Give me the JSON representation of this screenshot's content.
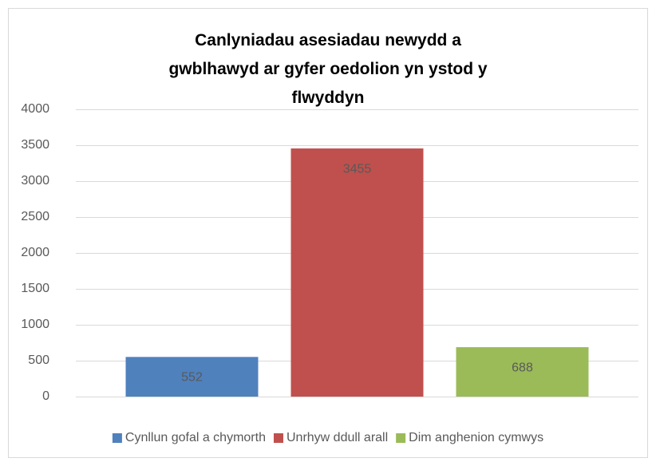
{
  "chart_data": {
    "type": "bar",
    "title": "Canlyniadau asesiadau newydd a gwblhawyd ar gyfer oedolion yn ystod y flwyddyn",
    "categories": [
      null
    ],
    "series": [
      {
        "name": "Cynllun gofal a chymorth",
        "color": "#4f81bd",
        "values": [
          552
        ]
      },
      {
        "name": "Unrhyw ddull arall",
        "color": "#c0504d",
        "values": [
          3455
        ]
      },
      {
        "name": "Dim anghenion cymwys",
        "color": "#9bbb59",
        "values": [
          688
        ]
      }
    ],
    "ylim": [
      0,
      4000
    ],
    "yticks": [
      0,
      500,
      1000,
      1500,
      2000,
      2500,
      3000,
      3500,
      4000
    ],
    "grid": true,
    "legend": "bottom",
    "data_labels": true
  }
}
